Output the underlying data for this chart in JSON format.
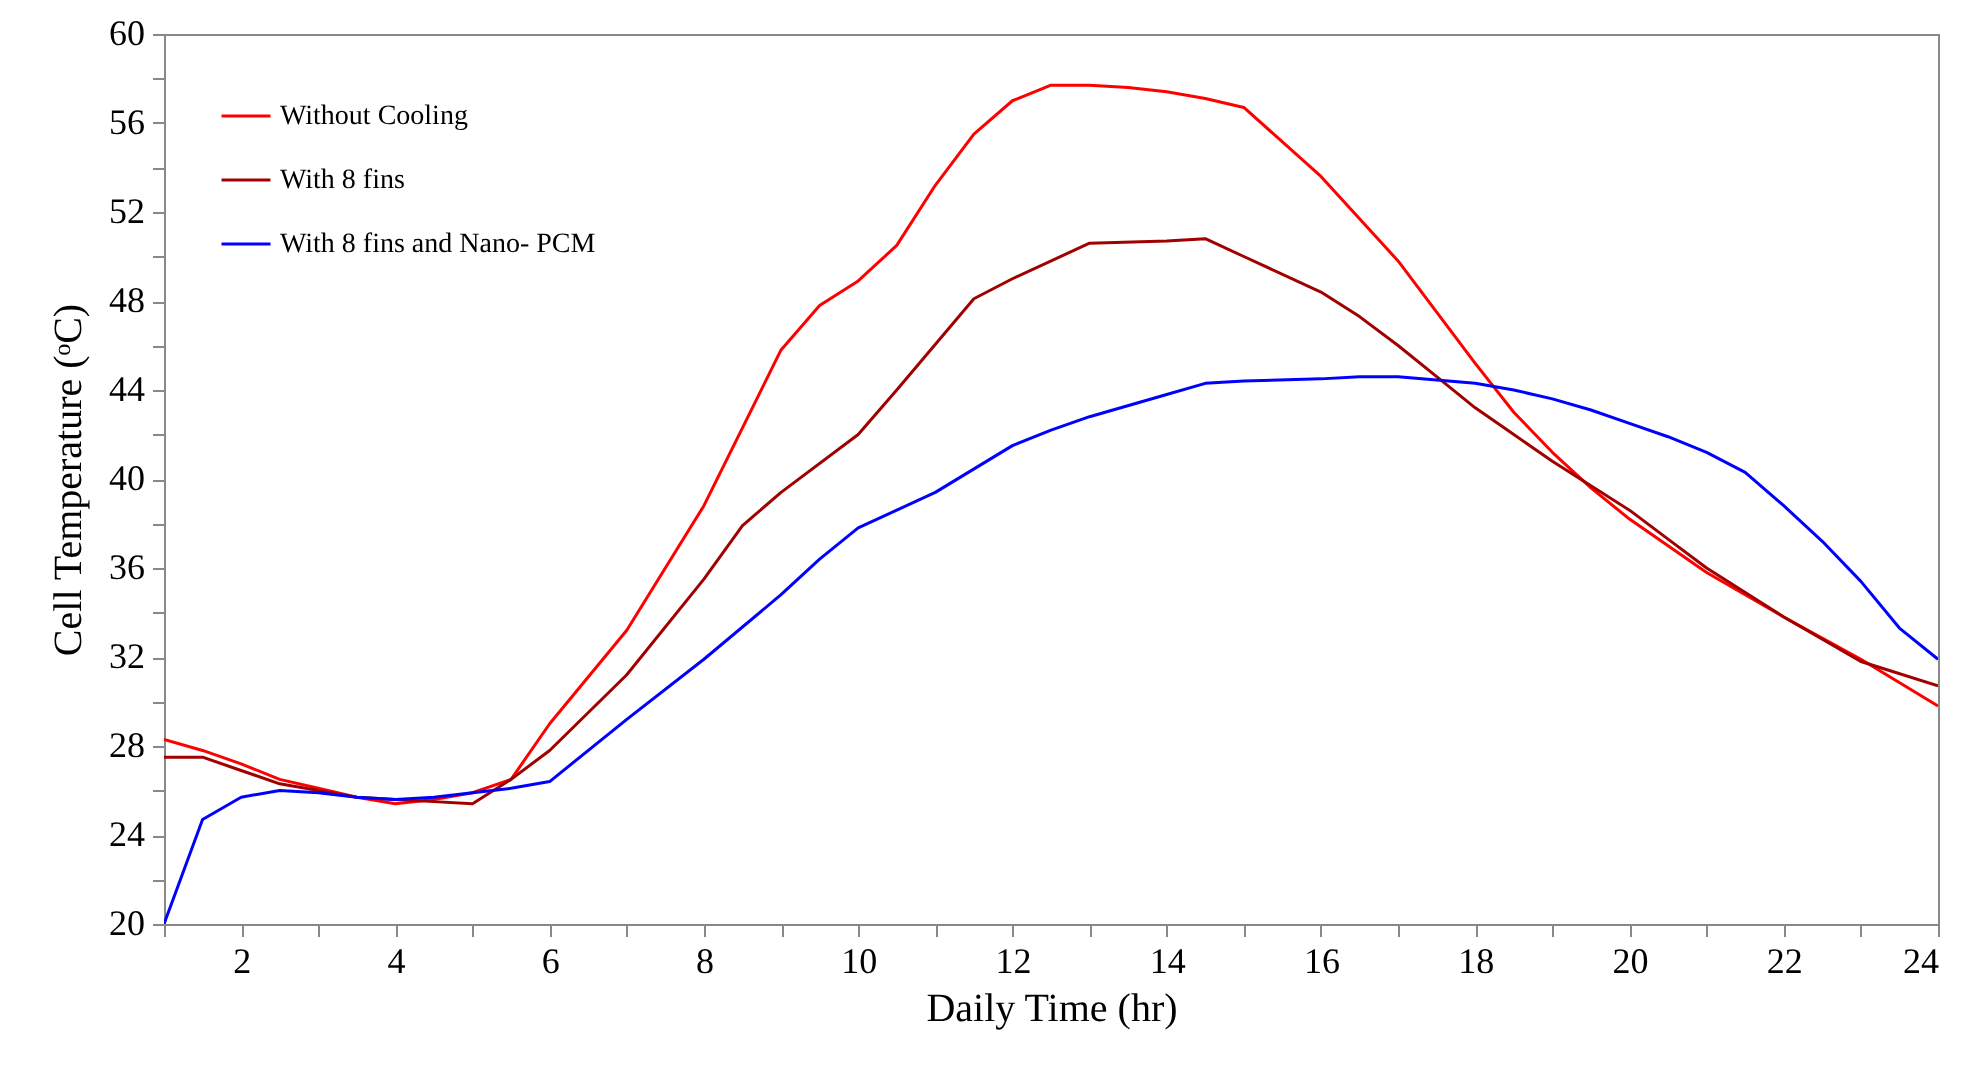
{
  "chart_data": {
    "type": "line",
    "xlabel": "Daily Time (hr)",
    "ylabel": "Cell Temperature (ᵒC)",
    "xlim": [
      1,
      24
    ],
    "xticks": [
      {
        "value": 1,
        "label": null
      },
      2,
      {
        "value": 3,
        "label": null
      },
      4,
      {
        "value": 5,
        "label": null
      },
      6,
      {
        "value": 7,
        "label": null
      },
      8,
      {
        "value": 9,
        "label": null
      },
      10,
      {
        "value": 11,
        "label": null
      },
      12,
      {
        "value": 13,
        "label": null
      },
      14,
      {
        "value": 15,
        "label": null
      },
      16,
      {
        "value": 17,
        "label": null
      },
      18,
      {
        "value": 19,
        "label": null
      },
      20,
      {
        "value": 21,
        "label": null
      },
      22,
      {
        "value": 23,
        "label": null
      },
      24
    ],
    "ylim": [
      20,
      60
    ],
    "yticks": [
      20,
      {
        "value": 22,
        "label": null
      },
      24,
      {
        "value": 26,
        "label": null
      },
      28,
      {
        "value": 30,
        "label": null
      },
      32,
      {
        "value": 34,
        "label": null
      },
      36,
      {
        "value": 38,
        "label": null
      },
      40,
      {
        "value": 42,
        "label": null
      },
      44,
      {
        "value": 46,
        "label": null
      },
      48,
      {
        "value": 50,
        "label": null
      },
      52,
      {
        "value": 54,
        "label": null
      },
      56,
      {
        "value": 58,
        "label": null
      },
      60
    ],
    "grid": false,
    "legend": "top left",
    "marker": "none",
    "series": [
      {
        "name": "Without Cooling",
        "color": "#ff0000",
        "x": [
          1,
          1.5,
          2,
          2.5,
          3,
          3.5,
          4,
          4.5,
          5,
          5.5,
          6,
          7,
          8,
          8.5,
          9,
          9.5,
          10,
          10.5,
          11,
          11.5,
          12,
          12.5,
          13,
          13.5,
          14,
          14.5,
          15,
          16,
          17,
          18,
          18.5,
          19,
          19.5,
          20,
          21,
          22,
          23,
          24
        ],
        "values": [
          28.3,
          27.8,
          27.2,
          26.5,
          26.1,
          25.7,
          25.4,
          25.6,
          25.9,
          26.5,
          29.0,
          33.2,
          38.8,
          42.3,
          45.8,
          47.8,
          48.9,
          50.5,
          53.2,
          55.5,
          57.0,
          57.7,
          57.7,
          57.6,
          57.4,
          57.1,
          56.7,
          53.6,
          49.8,
          45.2,
          43.0,
          41.2,
          39.6,
          38.2,
          35.8,
          33.8,
          31.9,
          29.8
        ]
      },
      {
        "name": "With 8 fins",
        "color": "#a00000",
        "x": [
          1,
          1.5,
          2,
          2.5,
          3,
          3.5,
          4,
          4.5,
          5,
          5.5,
          6,
          7,
          8,
          8.5,
          9,
          10,
          10.5,
          11.5,
          12,
          13,
          14,
          14.5,
          15,
          16,
          16.5,
          17,
          17.5,
          18,
          18.5,
          19,
          20,
          20.5,
          21,
          22,
          23,
          24
        ],
        "values": [
          27.5,
          27.5,
          26.9,
          26.3,
          26.0,
          25.7,
          25.6,
          25.5,
          25.4,
          26.5,
          27.8,
          31.2,
          35.5,
          37.9,
          39.4,
          42.0,
          44.0,
          48.1,
          49.0,
          50.6,
          50.7,
          50.8,
          50.0,
          48.4,
          47.3,
          46.0,
          44.6,
          43.2,
          42.0,
          40.8,
          38.6,
          37.3,
          36.0,
          33.8,
          31.8,
          30.7
        ]
      },
      {
        "name": "With 8 fins and Nano- PCM",
        "color": "#0000ff",
        "x": [
          1,
          1.5,
          2,
          2.5,
          3,
          3.5,
          4,
          4.5,
          5,
          5.5,
          6,
          7,
          8,
          9,
          9.5,
          10,
          11,
          12,
          12.5,
          13,
          14,
          14.5,
          15,
          16,
          16.5,
          17,
          18,
          18.5,
          19,
          19.5,
          20,
          20.5,
          21,
          21.5,
          22,
          22.5,
          23,
          23.5,
          24
        ],
        "values": [
          20.0,
          24.7,
          25.7,
          26.0,
          25.9,
          25.7,
          25.6,
          25.7,
          25.9,
          26.1,
          26.4,
          29.2,
          31.9,
          34.8,
          36.4,
          37.8,
          39.4,
          41.5,
          42.2,
          42.8,
          43.8,
          44.3,
          44.4,
          44.5,
          44.6,
          44.6,
          44.3,
          44.0,
          43.6,
          43.1,
          42.5,
          41.9,
          41.2,
          40.3,
          38.8,
          37.2,
          35.4,
          33.3,
          31.9
        ]
      }
    ]
  }
}
